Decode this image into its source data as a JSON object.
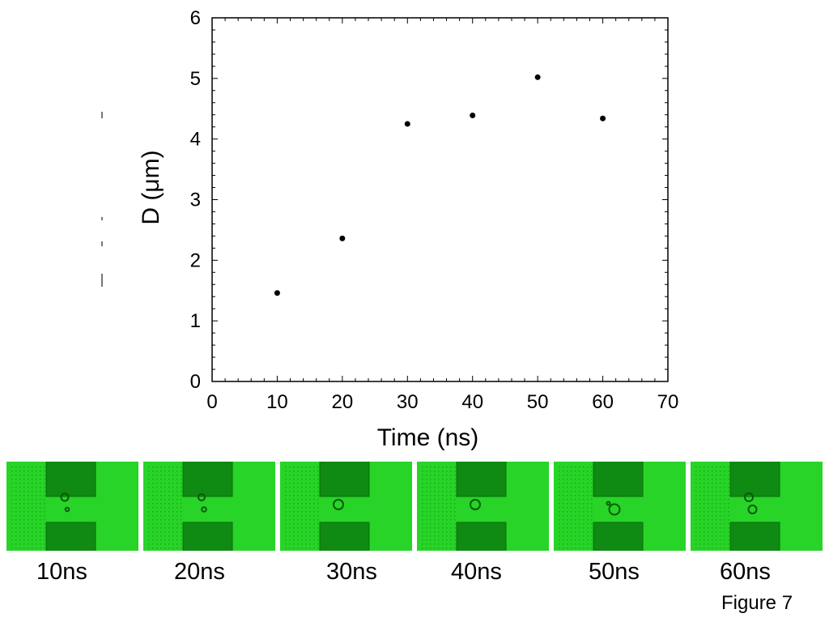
{
  "chart_data": {
    "type": "scatter",
    "xlabel": "Time (ns)",
    "ylabel": "D (μm)",
    "xlim": [
      0,
      70
    ],
    "ylim": [
      0,
      6
    ],
    "xticks": [
      "0",
      "10",
      "20",
      "30",
      "40",
      "50",
      "60",
      "70"
    ],
    "yticks": [
      "0",
      "1",
      "2",
      "3",
      "4",
      "5",
      "6"
    ],
    "grid": false,
    "series": [
      {
        "x": [
          10,
          20,
          30,
          40,
          50,
          60
        ],
        "y": [
          1.46,
          2.36,
          4.25,
          4.39,
          5.02,
          4.34
        ]
      }
    ]
  },
  "frames": [
    {
      "caption": "10ns",
      "bubbles": [
        {
          "dx": 0.0,
          "dy": 0.0,
          "r": 0.9
        },
        {
          "dx": 0.2,
          "dy": 1.0,
          "r": 0.45
        }
      ]
    },
    {
      "caption": "20ns",
      "bubbles": [
        {
          "dx": 0.0,
          "dy": 0.0,
          "r": 0.8
        },
        {
          "dx": 0.2,
          "dy": 1.0,
          "r": 0.55
        }
      ]
    },
    {
      "caption": "30ns",
      "bubbles": [
        {
          "dx": 0.0,
          "dy": 0.6,
          "r": 1.2
        }
      ]
    },
    {
      "caption": "40ns",
      "bubbles": [
        {
          "dx": 0.0,
          "dy": 0.6,
          "r": 1.2
        }
      ]
    },
    {
      "caption": "50ns",
      "bubbles": [
        {
          "dx": 0.2,
          "dy": 1.0,
          "r": 1.3
        },
        {
          "dx": -0.3,
          "dy": 0.5,
          "r": 0.4
        }
      ]
    },
    {
      "caption": "60ns",
      "bubbles": [
        {
          "dx": 0.0,
          "dy": 0.0,
          "r": 1.0
        },
        {
          "dx": 0.3,
          "dy": 1.0,
          "r": 1.0
        }
      ]
    }
  ],
  "figure_label": "Figure 7",
  "colors": {
    "frame_green": "#27d427",
    "electrode": "#0f8a12",
    "axes": "#000000"
  }
}
